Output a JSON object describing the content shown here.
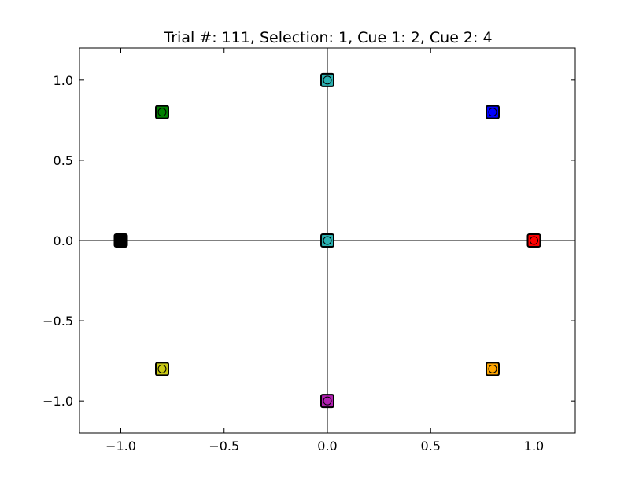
{
  "chart_data": {
    "type": "scatter",
    "title": "Trial #: 111, Selection: 1, Cue 1: 2, Cue 2: 4",
    "xlabel": "",
    "ylabel": "",
    "xlim": [
      -1.2,
      1.2
    ],
    "ylim": [
      -1.2,
      1.2
    ],
    "grid": false,
    "reference_lines": {
      "x": 0,
      "y": 0
    },
    "x_ticks": [
      {
        "value": -1.0,
        "label": "−1.0"
      },
      {
        "value": -0.5,
        "label": "−0.5"
      },
      {
        "value": 0.0,
        "label": "0.0"
      },
      {
        "value": 0.5,
        "label": "0.5"
      },
      {
        "value": 1.0,
        "label": "1.0"
      }
    ],
    "y_ticks": [
      {
        "value": 1.0,
        "label": "1.0"
      },
      {
        "value": 0.5,
        "label": "0.5"
      },
      {
        "value": 0.0,
        "label": "0.0"
      },
      {
        "value": -0.5,
        "label": "−0.5"
      },
      {
        "value": -1.0,
        "label": "−1.0"
      }
    ],
    "points": [
      {
        "x": 0.0,
        "y": 1.0,
        "square_color": "#2ab0b0",
        "circle_color": "#2ab0b0"
      },
      {
        "x": -0.8,
        "y": 0.8,
        "square_color": "#008000",
        "circle_color": "#008000"
      },
      {
        "x": 0.8,
        "y": 0.8,
        "square_color": "#0000ff",
        "circle_color": "#0000ff"
      },
      {
        "x": -1.0,
        "y": 0.0,
        "square_color": "#000000",
        "circle_color": "#000000"
      },
      {
        "x": 0.0,
        "y": 0.0,
        "square_color": "#2ab0b0",
        "circle_color": "#2ab0b0"
      },
      {
        "x": 1.0,
        "y": 0.0,
        "square_color": "#ff0000",
        "circle_color": "#ff0000"
      },
      {
        "x": -0.8,
        "y": -0.8,
        "square_color": "#c8c814",
        "circle_color": "#c8c814"
      },
      {
        "x": 0.8,
        "y": -0.8,
        "square_color": "#ffa500",
        "circle_color": "#ffa500"
      },
      {
        "x": 0.0,
        "y": -1.0,
        "square_color": "#b020b0",
        "circle_color": "#b020b0"
      }
    ]
  }
}
